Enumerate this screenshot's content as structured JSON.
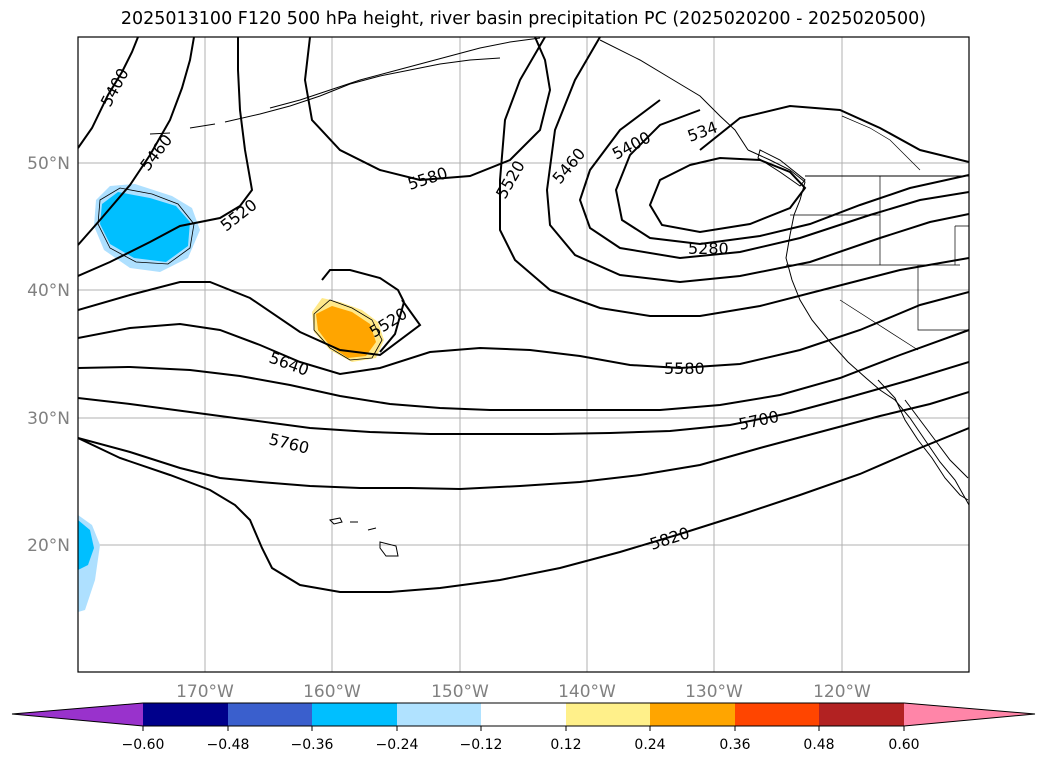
{
  "title": "2025013100 F120 500 hPa height, river basin precipitation PC (2025020200 - 2025020500)",
  "map": {
    "lat_labels": [
      "50°N",
      "40°N",
      "30°N",
      "20°N"
    ],
    "lon_labels": [
      "170°W",
      "160°W",
      "150°W",
      "140°W",
      "130°W",
      "120°W"
    ],
    "contour_labels": [
      "5400",
      "5460",
      "5520",
      "5580",
      "5520",
      "5460",
      "5400",
      "534",
      "5280",
      "5520",
      "5640",
      "5580",
      "5700",
      "5760",
      "5820"
    ],
    "contour_color": "#000000",
    "grid_color": "#b0b0b0",
    "precip_colors": {
      "negative_strong": "#00bfff",
      "negative_weak": "#aee0ff",
      "positive_strong": "#ffa500",
      "positive_weak": "#ffe98a"
    }
  },
  "colorbar": {
    "ticks": [
      "−0.60",
      "−0.48",
      "−0.36",
      "−0.24",
      "−0.12",
      "0.12",
      "0.24",
      "0.36",
      "0.48",
      "0.60"
    ],
    "colors": [
      "#9932cc",
      "#00008b",
      "#3a5fcd",
      "#00bfff",
      "#b0e2ff",
      "#ffffff",
      "#fff08a",
      "#ffa500",
      "#ff4500",
      "#b22222",
      "#ff85a8"
    ]
  }
}
